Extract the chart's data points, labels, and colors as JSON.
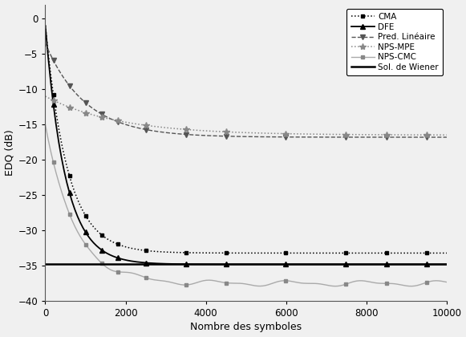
{
  "title": "",
  "xlabel": "Nombre des symboles",
  "ylabel": "EDQ (dB)",
  "xlim": [
    0,
    10000
  ],
  "ylim": [
    -40,
    2
  ],
  "yticks": [
    0,
    -5,
    -10,
    -15,
    -20,
    -25,
    -30,
    -35,
    -40
  ],
  "xticks": [
    0,
    2000,
    4000,
    6000,
    8000,
    10000
  ],
  "background_color": "#f0f0f0",
  "wiener_level": -34.8,
  "cma_start": -1.0,
  "cma_converged": -33.2,
  "cma_speed": 0.0018,
  "dfe_start": -1.0,
  "dfe_converged": -34.8,
  "dfe_speed": 0.002,
  "pred_start": -3.5,
  "pred_converged": -16.8,
  "pred_speed": 0.001,
  "nps_mpe_start": -11.0,
  "nps_mpe_converged": -16.5,
  "nps_mpe_speed": 0.00055,
  "nps_cmc_start": -15.0,
  "nps_cmc_converged": -37.5,
  "nps_cmc_speed": 0.0014
}
